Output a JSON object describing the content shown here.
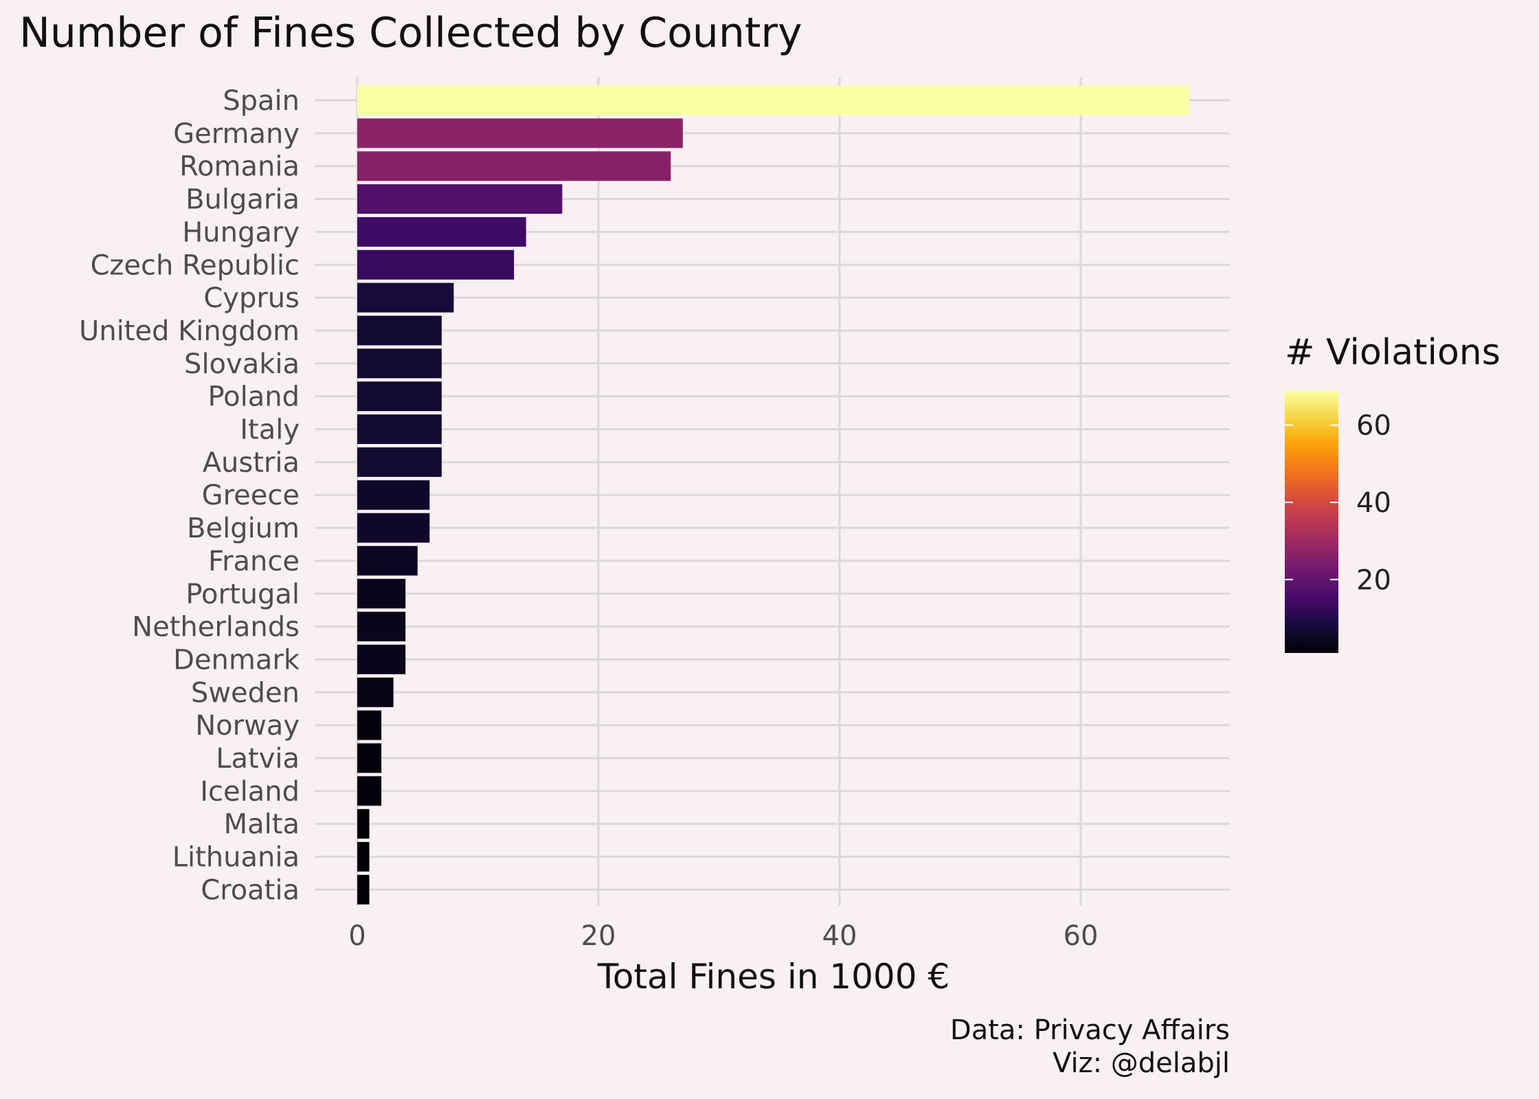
{
  "chart_data": {
    "type": "bar",
    "orientation": "horizontal",
    "title": "Number of Fines Collected by Country",
    "xlabel": "Total Fines in 1000 €",
    "ylabel": "",
    "xlim": [
      0,
      72
    ],
    "x_ticks": [
      0,
      20,
      40,
      60
    ],
    "grid": true,
    "categories": [
      "Spain",
      "Germany",
      "Romania",
      "Bulgaria",
      "Hungary",
      "Czech Republic",
      "Cyprus",
      "United Kingdom",
      "Slovakia",
      "Poland",
      "Italy",
      "Austria",
      "Greece",
      "Belgium",
      "France",
      "Portugal",
      "Netherlands",
      "Denmark",
      "Sweden",
      "Norway",
      "Latvia",
      "Iceland",
      "Malta",
      "Lithuania",
      "Croatia"
    ],
    "values": [
      69,
      27,
      26,
      17,
      14,
      13,
      8,
      7,
      7,
      7,
      7,
      7,
      6,
      6,
      5,
      4,
      4,
      4,
      3,
      2,
      2,
      2,
      1,
      1,
      1
    ],
    "fill_variable": "# Violations",
    "violations": [
      69,
      27,
      26,
      17,
      14,
      13,
      8,
      7,
      7,
      7,
      7,
      7,
      6,
      6,
      5,
      4,
      4,
      4,
      3,
      2,
      2,
      2,
      1,
      1,
      1
    ],
    "colorscale": "inferno",
    "legend": {
      "title": "# Violations",
      "ticks": [
        20,
        40,
        60
      ],
      "range": [
        1,
        69
      ],
      "placement": "right"
    },
    "caption": [
      "Data: Privacy Affairs",
      "Viz: @delabjl"
    ]
  }
}
